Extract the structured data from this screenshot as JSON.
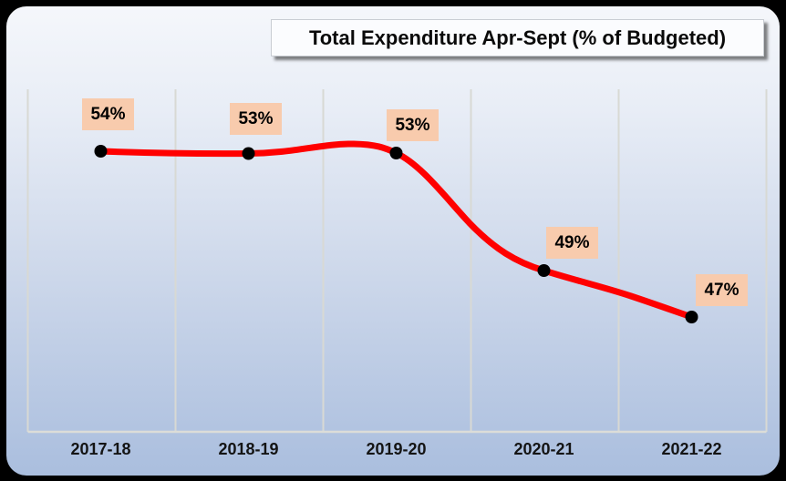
{
  "title_box": {
    "text": "Total Expenditure Apr-Sept (% of Budgeted)"
  },
  "chart_data": {
    "type": "line",
    "title": "Total Expenditure Apr-Sept (% of Budgeted)",
    "categories": [
      "2017-18",
      "2018-19",
      "2019-20",
      "2020-21",
      "2021-22"
    ],
    "series": [
      {
        "name": "Total Expenditure Apr-Sept (% of Budgeted)",
        "values": [
          54,
          53,
          53,
          49,
          47
        ]
      }
    ],
    "data_labels": [
      "54%",
      "53%",
      "53%",
      "49%",
      "47%"
    ],
    "line_style": "smooth",
    "marker": "circle",
    "gridlines": "vertical",
    "legend": false,
    "y_axis_visible": false,
    "x_axis_visible": true
  },
  "colors": {
    "line": "#FF0000",
    "marker": "#000000",
    "data_label_bg": "#F8CBAD",
    "data_label_text": "#000000",
    "axis_text": "#141414",
    "gridline": "#D8D9D4",
    "axis_line": "#DCDDD8",
    "panel_top": "#F5F7FB",
    "panel_bottom": "#AABEDE",
    "frame": "#000000",
    "title_bg": "#FBFCFE",
    "title_border": "#C9CDD3"
  }
}
